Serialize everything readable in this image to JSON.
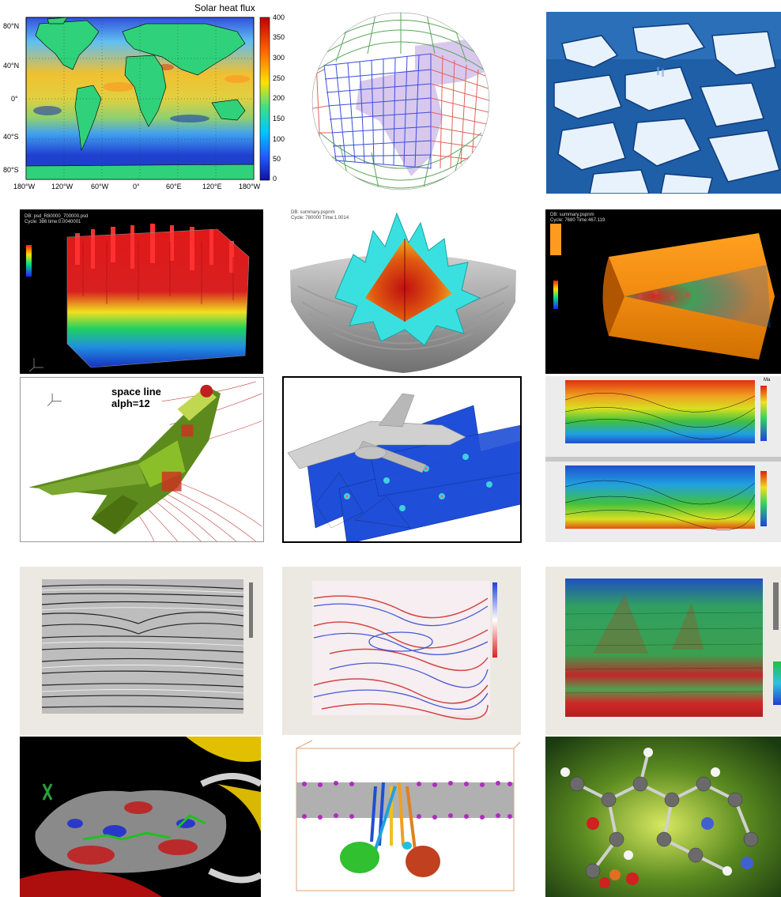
{
  "panels": {
    "solar_map": {
      "title": "Solar heat flux",
      "lat_ticks": [
        "80°N",
        "40°N",
        "0°",
        "40°S",
        "80°S"
      ],
      "lon_ticks": [
        "180°W",
        "120°W",
        "60°W",
        "0°",
        "60°E",
        "120°E",
        "180°W"
      ],
      "colorbar_ticks": [
        "400",
        "350",
        "300",
        "250",
        "200",
        "150",
        "100",
        "50",
        "0"
      ]
    },
    "shuttle_streamlines": {
      "title_line1": "space line",
      "title_line2": "alph=12"
    },
    "turbulence_box": {
      "info_line1": "DB: psd_R80000_700000.psd",
      "info_line2": "Cycle: 386    time:0.0040001"
    },
    "spherical_shell": {
      "info_line1": "DB: summary.pspnm",
      "info_line2": "Cycle: 780000  Time:1.0014"
    },
    "cylinder_volume": {
      "info_line1": "DB: summary.pspnm",
      "info_line2": "Cycle: 7680    Time:467.119"
    },
    "contour_panels": {
      "legend_title": "Ma"
    }
  },
  "colors": {
    "page_background": "#ffffff",
    "ocean_ice": "#1f5fa8",
    "land_map": "#2fd27a",
    "shuttle_body": "#5c8a1c",
    "streamlines": "#b4231f"
  }
}
